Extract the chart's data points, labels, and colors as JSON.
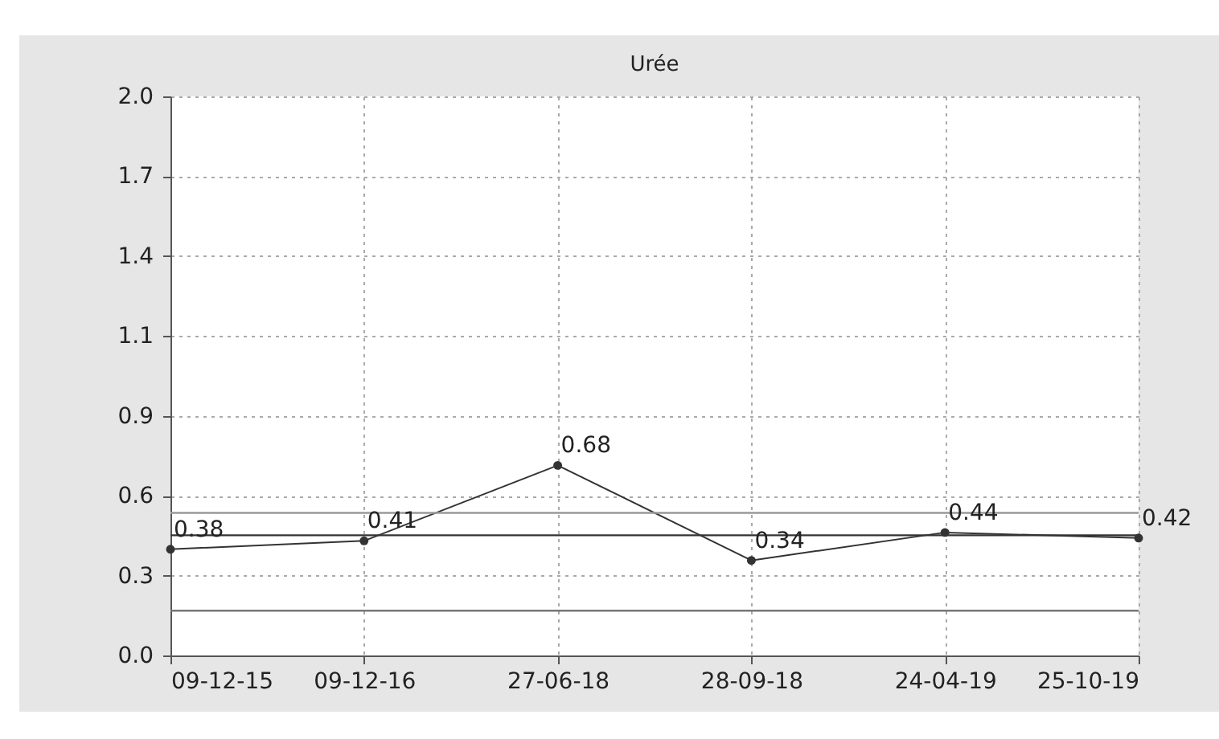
{
  "chart_data": {
    "type": "line",
    "title": "Urée",
    "categories": [
      "09-12-15",
      "09-12-16",
      "27-06-18",
      "28-09-18",
      "24-04-19",
      "25-10-19"
    ],
    "series": [
      {
        "color": "#333333",
        "values": [
          0.38,
          0.41,
          0.68,
          0.34,
          0.44,
          0.42
        ]
      }
    ],
    "ylim": [
      0,
      2.0
    ],
    "yticks": [
      {
        "value": 0,
        "label": "0.0"
      },
      {
        "value": 0.2857,
        "label": "0.3"
      },
      {
        "value": 0.5714,
        "label": "0.6"
      },
      {
        "value": 0.8571,
        "label": "0.9"
      },
      {
        "value": 1.1429,
        "label": "1.1"
      },
      {
        "value": 1.4286,
        "label": "1.4"
      },
      {
        "value": 1.7143,
        "label": "1.7"
      },
      {
        "value": 2.0,
        "label": "2.0"
      }
    ],
    "ref_lines": [
      {
        "axis": "y",
        "value": 0.43,
        "color": "#333333"
      },
      {
        "axis": "y",
        "value": 0.51,
        "color": "#999999"
      },
      {
        "axis": "y",
        "value": 0.16,
        "color": "#777777"
      }
    ],
    "data_labels": true,
    "grid": true,
    "marker": "circle",
    "line_style": "solid"
  }
}
